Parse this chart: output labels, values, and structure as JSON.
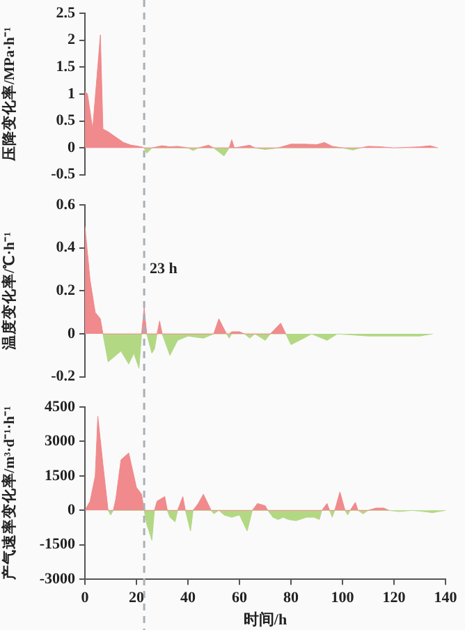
{
  "chart_data": [
    {
      "type": "area",
      "ylabel": "压降变化率/MPa·h⁻¹",
      "xlim": [
        0,
        140
      ],
      "xticks": [
        0,
        20,
        40,
        60,
        80,
        100,
        120,
        140
      ],
      "ylim": [
        -0.5,
        2.5
      ],
      "yticks": [
        -0.5,
        0,
        0.5,
        1.0,
        1.5,
        2.0,
        2.5
      ],
      "tick_labels": "y",
      "legend": false,
      "grid": false,
      "ref_lines": [
        {
          "axis": "x",
          "value": 23,
          "color": "#a8b0b8",
          "line_style": "dashed"
        }
      ],
      "series": [
        {
          "color": "#f08a8c",
          "x": [
            0,
            1,
            3,
            6,
            7,
            9,
            12,
            15,
            18,
            22,
            23,
            26,
            30,
            33,
            36,
            40,
            44,
            48,
            50,
            56,
            57,
            58,
            64,
            66,
            75,
            80,
            85,
            90,
            93,
            96,
            100,
            107,
            110,
            115,
            120,
            130,
            134,
            137
          ],
          "values": [
            1.05,
            1.0,
            0.35,
            2.1,
            0.35,
            0.3,
            0.2,
            0.1,
            0.05,
            0.02,
            0,
            0,
            0.04,
            0.02,
            0.03,
            0,
            0,
            0.05,
            0,
            0,
            0.15,
            0,
            0.05,
            0,
            0,
            0.07,
            0.07,
            0.06,
            0.1,
            0.03,
            0,
            0,
            0.03,
            0.02,
            0,
            0.02,
            0.04,
            0
          ]
        },
        {
          "color": "#b2d884",
          "x": [
            23,
            24,
            26,
            40,
            42,
            44,
            50,
            54,
            56,
            66,
            70,
            75,
            100,
            104,
            107
          ],
          "values": [
            0,
            -0.1,
            0,
            0,
            -0.05,
            0,
            0,
            -0.15,
            0,
            0,
            -0.03,
            0,
            0,
            -0.04,
            0
          ]
        }
      ]
    },
    {
      "type": "area",
      "ylabel": "温度变化率/℃·h⁻¹",
      "xlim": [
        0,
        140
      ],
      "xticks": [
        0,
        20,
        40,
        60,
        80,
        100,
        120,
        140
      ],
      "ylim": [
        -0.2,
        0.6
      ],
      "yticks": [
        -0.2,
        0,
        0.2,
        0.4,
        0.6
      ],
      "tick_labels": "y",
      "legend": false,
      "grid": false,
      "ref_lines": [
        {
          "axis": "x",
          "value": 23,
          "label": "23 h",
          "color": "#a8b0b8",
          "line_style": "dashed"
        }
      ],
      "series": [
        {
          "color": "#f08a8c",
          "x": [
            0,
            2,
            4,
            6,
            7,
            22,
            23,
            24,
            28,
            29,
            30,
            50,
            52,
            55,
            56,
            57,
            60,
            62,
            72,
            76,
            78
          ],
          "values": [
            0.5,
            0.25,
            0.1,
            0.07,
            0,
            0,
            0.12,
            0,
            0,
            0.06,
            0,
            0,
            0.07,
            0,
            0,
            0.01,
            0.01,
            0,
            0,
            0.05,
            0
          ]
        },
        {
          "color": "#b2d884",
          "x": [
            7,
            9,
            12,
            14,
            17,
            19,
            21,
            22,
            24,
            26,
            27,
            28,
            30,
            33,
            36,
            40,
            46,
            50,
            55,
            56,
            57,
            62,
            64,
            66,
            70,
            72,
            78,
            80,
            85,
            88,
            94,
            98,
            110,
            125,
            130,
            135
          ],
          "values": [
            0,
            -0.13,
            -0.1,
            -0.08,
            -0.14,
            -0.09,
            -0.16,
            0,
            0,
            -0.09,
            -0.07,
            0,
            0,
            -0.1,
            -0.03,
            -0.01,
            -0.02,
            0,
            0,
            -0.02,
            0,
            0,
            -0.02,
            0,
            -0.03,
            0,
            0,
            -0.05,
            -0.02,
            0,
            -0.03,
            0,
            -0.01,
            -0.01,
            -0.01,
            0
          ]
        }
      ]
    },
    {
      "type": "area",
      "xlabel": "时间/h",
      "ylabel": "产气速率变化率/m³·d⁻¹·h⁻¹",
      "xlim": [
        0,
        140
      ],
      "xticks": [
        0,
        20,
        40,
        60,
        80,
        100,
        120,
        140
      ],
      "ylim": [
        -3000,
        4500
      ],
      "yticks": [
        -3000,
        -1500,
        0,
        1500,
        3000,
        4500
      ],
      "legend": false,
      "grid": false,
      "ref_lines": [
        {
          "axis": "x",
          "value": 23,
          "color": "#a8b0b8",
          "line_style": "dashed"
        }
      ],
      "series": [
        {
          "color": "#f08a8c",
          "x": [
            0,
            2,
            4,
            5,
            7,
            9,
            11,
            12,
            14,
            17,
            20,
            22,
            23,
            27,
            28,
            31,
            32,
            36,
            38,
            39,
            42,
            44,
            46,
            49,
            65,
            67,
            70,
            71,
            92,
            94,
            95,
            97,
            99,
            101,
            103,
            105,
            106,
            110,
            113,
            116,
            118
          ],
          "values": [
            0,
            400,
            1500,
            4100,
            2000,
            0,
            0,
            500,
            2200,
            2500,
            1000,
            700,
            0,
            0,
            400,
            600,
            0,
            0,
            600,
            0,
            0,
            300,
            700,
            0,
            0,
            300,
            200,
            0,
            0,
            300,
            0,
            0,
            800,
            0,
            0,
            350,
            0,
            0,
            100,
            100,
            0
          ]
        },
        {
          "color": "#b2d884",
          "x": [
            9,
            10,
            11,
            23,
            24,
            26,
            27,
            32,
            33,
            35,
            36,
            39,
            41,
            42,
            49,
            50,
            52,
            54,
            57,
            60,
            63,
            65,
            71,
            73,
            75,
            77,
            79,
            82,
            86,
            89,
            91,
            92,
            95,
            96,
            97,
            101,
            102,
            103,
            106,
            108,
            110,
            118,
            122,
            127,
            130,
            135,
            140
          ],
          "values": [
            0,
            -200,
            0,
            0,
            -600,
            -1300,
            0,
            0,
            -300,
            -500,
            0,
            0,
            -900,
            0,
            0,
            -150,
            0,
            -200,
            -300,
            -200,
            -900,
            0,
            0,
            -300,
            -400,
            -300,
            -400,
            -450,
            -300,
            -300,
            -400,
            0,
            0,
            -300,
            0,
            0,
            -200,
            0,
            0,
            -150,
            0,
            0,
            -50,
            0,
            -30,
            -100,
            0
          ]
        }
      ]
    }
  ]
}
